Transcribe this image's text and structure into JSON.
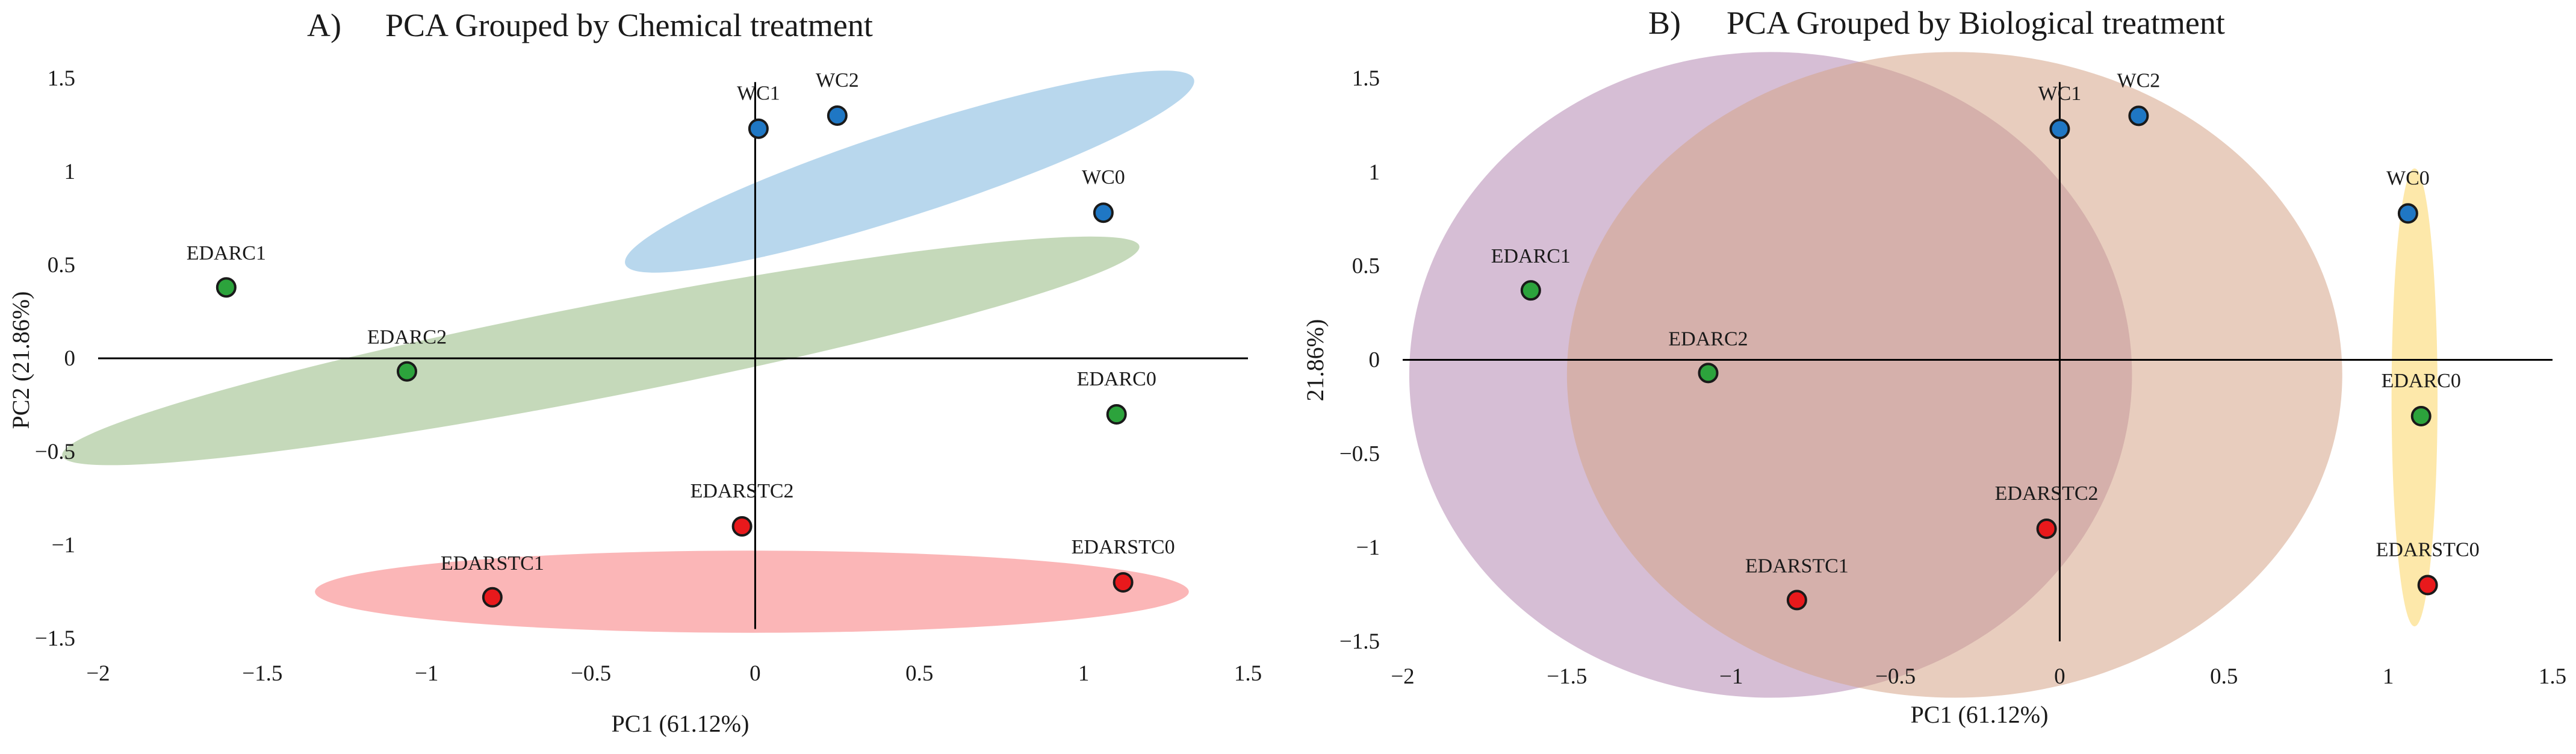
{
  "chart_data": [
    {
      "type": "scatter",
      "panel_label": "A)",
      "title": "PCA Grouped by Chemical treatment",
      "xlabel": "PC1 (61.12%)",
      "ylabel": "PC2 (21.86%)",
      "xlim": [
        -2,
        1.5
      ],
      "ylim": [
        -1.5,
        1.5
      ],
      "x_ticks": [
        -2,
        -1.5,
        -1,
        -0.5,
        0,
        0.5,
        1,
        1.5
      ],
      "x_tick_labels": [
        "−2",
        "−1.5",
        "−1",
        "−0.5",
        "0",
        "0.5",
        "1",
        "1.5"
      ],
      "y_ticks": [
        -1.5,
        -1,
        -0.5,
        0,
        0.5,
        1,
        1.5
      ],
      "y_tick_labels": [
        "−1.5",
        "−1",
        "−0.5",
        "0",
        "0.5",
        "1",
        "1.5"
      ],
      "groups": [
        {
          "name": "WC",
          "color": "#1f77c4",
          "ellipse_color": "#9cc7e6",
          "ellipse": {
            "cx": 0.47,
            "cy": 1.0,
            "rx": 0.91,
            "ry": 0.23,
            "angle_deg": -18
          }
        },
        {
          "name": "EDARC",
          "color": "#2ca33c",
          "ellipse_color": "#aecb9f",
          "ellipse": {
            "cx": -0.47,
            "cy": 0.04,
            "rx": 1.67,
            "ry": 0.25,
            "angle_deg": -11
          }
        },
        {
          "name": "EDARSTC",
          "color": "#e8191c",
          "ellipse_color": "#f99a9b",
          "ellipse": {
            "cx": -0.01,
            "cy": -1.25,
            "rx": 1.33,
            "ry": 0.22,
            "angle_deg": 0
          }
        }
      ],
      "points": [
        {
          "label": "WC1",
          "x": 0.01,
          "y": 1.23,
          "group": "WC"
        },
        {
          "label": "WC2",
          "x": 0.25,
          "y": 1.3,
          "group": "WC"
        },
        {
          "label": "WC0",
          "x": 1.06,
          "y": 0.78,
          "group": "WC"
        },
        {
          "label": "EDARC1",
          "x": -1.61,
          "y": 0.38,
          "group": "EDARC"
        },
        {
          "label": "EDARC2",
          "x": -1.06,
          "y": -0.07,
          "group": "EDARC"
        },
        {
          "label": "EDARC0",
          "x": 1.1,
          "y": -0.3,
          "group": "EDARC"
        },
        {
          "label": "EDARSTC2",
          "x": -0.04,
          "y": -0.9,
          "group": "EDARSTC"
        },
        {
          "label": "EDARSTC1",
          "x": -0.8,
          "y": -1.28,
          "group": "EDARSTC"
        },
        {
          "label": "EDARSTC0",
          "x": 1.12,
          "y": -1.2,
          "group": "EDARSTC"
        }
      ]
    },
    {
      "type": "scatter",
      "panel_label": "B)",
      "title": "PCA Grouped by Biological treatment",
      "xlabel": "PC1 (61.12%)",
      "ylabel": "21.86%)",
      "xlim": [
        -2,
        1.5
      ],
      "ylim": [
        -1.5,
        1.5
      ],
      "x_ticks": [
        -2,
        -1.5,
        -1,
        -0.5,
        0,
        0.5,
        1,
        1.5
      ],
      "x_tick_labels": [
        "−2",
        "−1.5",
        "−1",
        "−0.5",
        "0",
        "0.5",
        "1",
        "1.5"
      ],
      "y_ticks": [
        -1.5,
        -1,
        -0.5,
        0,
        0.5,
        1,
        1.5
      ],
      "y_tick_labels": [
        "−1.5",
        "−1",
        "−0.5",
        "0",
        "0.5",
        "1",
        "1.5"
      ],
      "groups": [
        {
          "name": "purple",
          "color": "#b489b2",
          "ellipse_color": "#b489b2",
          "ellipse": {
            "cx": -0.88,
            "cy": -0.08,
            "rx": 1.1,
            "ry": 1.72,
            "angle_deg": 0
          }
        },
        {
          "name": "tan",
          "color": "#d6a488",
          "ellipse_color": "#d6a488",
          "ellipse": {
            "cx": -0.32,
            "cy": -0.08,
            "rx": 1.18,
            "ry": 1.72,
            "angle_deg": 0
          }
        },
        {
          "name": "yellow",
          "color": "#fbd665",
          "ellipse_color": "#fbd665",
          "ellipse": {
            "cx": 1.08,
            "cy": -0.2,
            "rx": 0.07,
            "ry": 1.22,
            "angle_deg": 0
          }
        }
      ],
      "points": [
        {
          "label": "WC1",
          "x": 0.0,
          "y": 1.23,
          "color": "#1f77c4"
        },
        {
          "label": "WC2",
          "x": 0.24,
          "y": 1.3,
          "color": "#1f77c4"
        },
        {
          "label": "WC0",
          "x": 1.06,
          "y": 0.78,
          "color": "#1f77c4"
        },
        {
          "label": "EDARC1",
          "x": -1.61,
          "y": 0.37,
          "color": "#2ca33c"
        },
        {
          "label": "EDARC2",
          "x": -1.07,
          "y": -0.07,
          "color": "#2ca33c"
        },
        {
          "label": "EDARC0",
          "x": 1.1,
          "y": -0.3,
          "color": "#2ca33c"
        },
        {
          "label": "EDARSTC2",
          "x": -0.04,
          "y": -0.9,
          "color": "#e8191c"
        },
        {
          "label": "EDARSTC1",
          "x": -0.8,
          "y": -1.28,
          "color": "#e8191c"
        },
        {
          "label": "EDARSTC0",
          "x": 1.12,
          "y": -1.2,
          "color": "#e8191c"
        }
      ]
    }
  ]
}
